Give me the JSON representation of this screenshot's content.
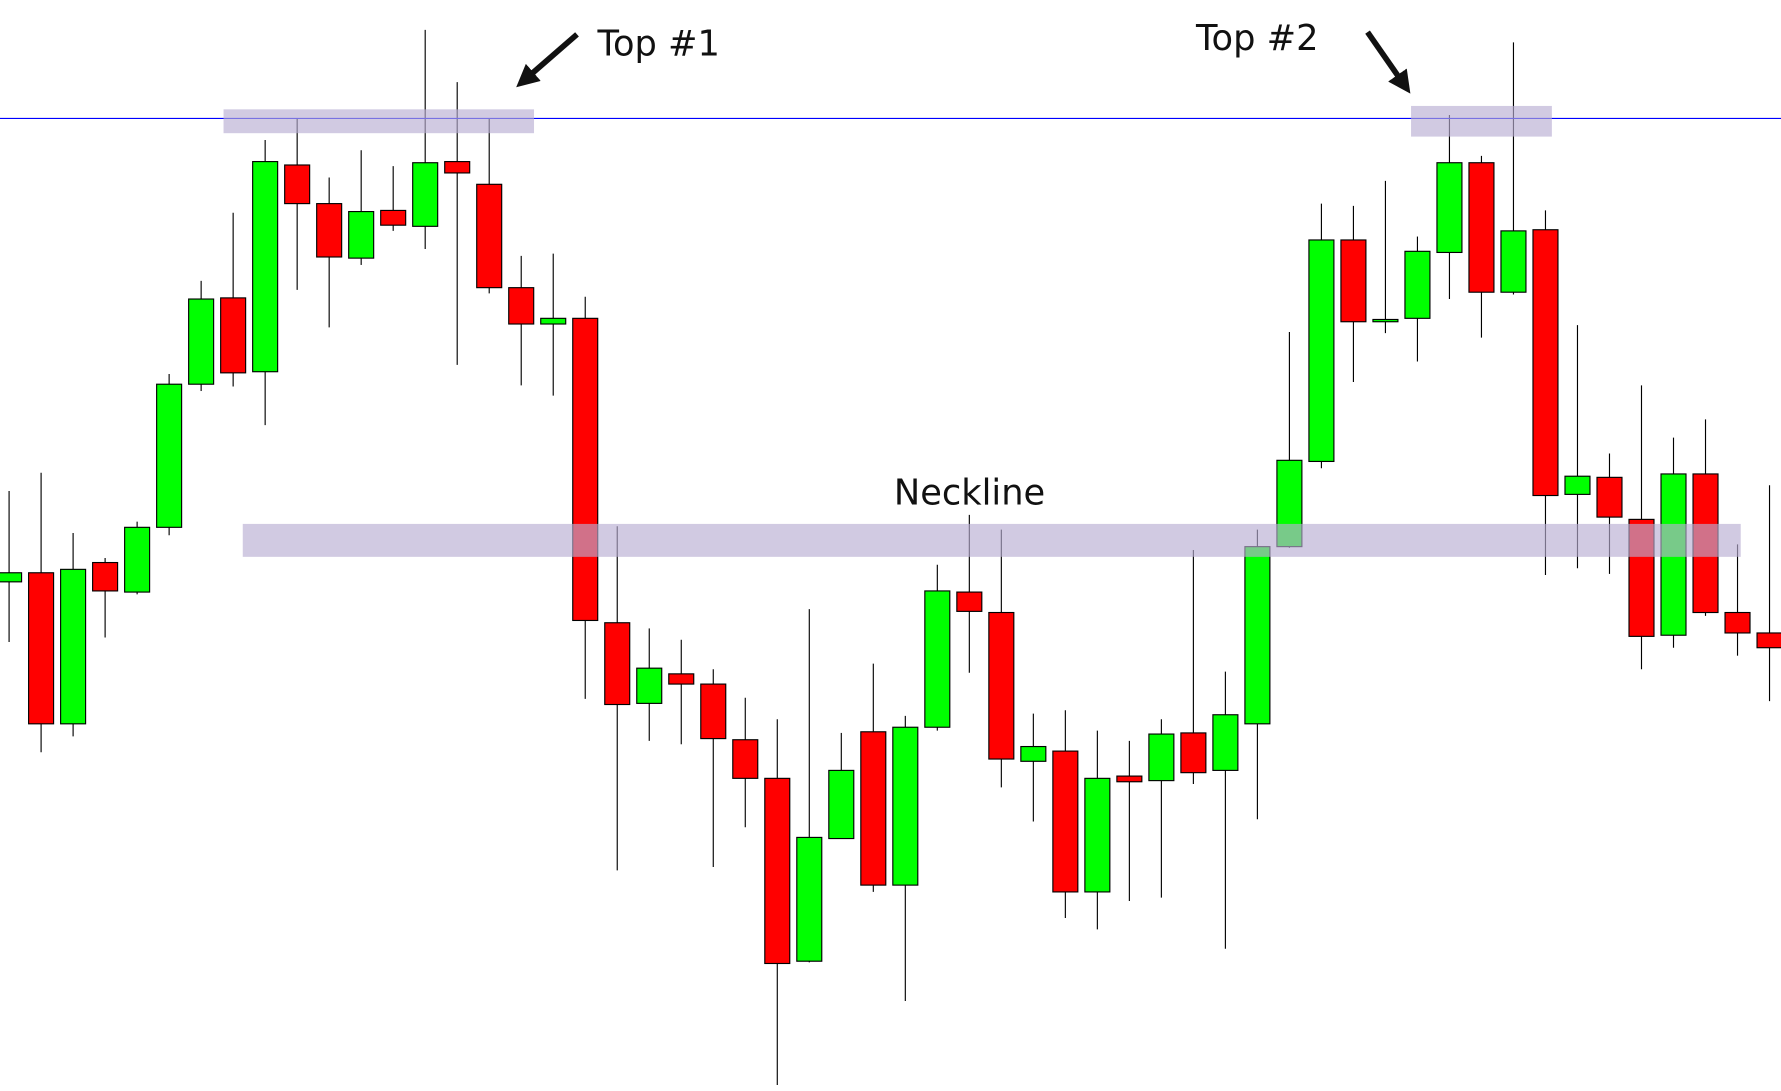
{
  "chart_data": {
    "type": "candlestick",
    "up_color": "#00ff00",
    "down_color": "#ff0000",
    "ylim": [
      0,
      960
    ],
    "open": [
      448,
      456,
      323,
      465,
      439,
      496,
      622,
      698,
      633,
      815,
      781,
      733,
      775,
      761,
      818,
      798,
      707,
      675,
      680,
      412,
      341,
      367,
      358,
      309,
      275,
      114,
      222,
      316,
      181,
      320,
      439,
      421,
      290,
      299,
      175,
      277,
      273,
      315,
      282,
      323,
      479,
      554,
      749,
      677,
      680,
      738,
      817,
      703,
      758,
      525,
      540,
      503,
      401,
      543,
      421,
      403
    ],
    "high": [
      528,
      544,
      491,
      469,
      501,
      631,
      713,
      773,
      837,
      856,
      804,
      828,
      814,
      934,
      888,
      856,
      735,
      737,
      699,
      497,
      407,
      397,
      371,
      346,
      327,
      424,
      315,
      376,
      330,
      463,
      507,
      494,
      332,
      335,
      317,
      308,
      327,
      476,
      369,
      494,
      668,
      781,
      779,
      801,
      752,
      859,
      823,
      923,
      775,
      674,
      561,
      621,
      575,
      591,
      481,
      533
    ],
    "low": [
      395,
      298,
      312,
      399,
      437,
      489,
      616,
      620,
      586,
      705,
      672,
      727,
      757,
      741,
      639,
      702,
      621,
      612,
      345,
      194,
      308,
      305,
      197,
      232,
      5,
      113,
      222,
      175,
      79,
      317,
      368,
      267,
      237,
      152,
      142,
      167,
      170,
      270,
      125,
      239,
      478,
      548,
      624,
      667,
      642,
      697,
      663,
      701,
      454,
      460,
      455,
      371,
      390,
      418,
      383,
      343
    ],
    "close": [
      456,
      323,
      459,
      440,
      496,
      622,
      697,
      632,
      818,
      781,
      734,
      774,
      762,
      817,
      808,
      707,
      675,
      680,
      414,
      340,
      372,
      358,
      310,
      275,
      112,
      223,
      282,
      181,
      320,
      440,
      422,
      292,
      303,
      175,
      275,
      272,
      314,
      280,
      331,
      479,
      555,
      749,
      677,
      679,
      739,
      817,
      703,
      757,
      524,
      541,
      505,
      400,
      543,
      421,
      403,
      390
    ],
    "resistance": {
      "value": 856,
      "color": "#0000ff"
    },
    "zones": [
      {
        "from": 6.7,
        "to": 16.4,
        "low": 843,
        "high": 864
      },
      {
        "from": 43.8,
        "to": 48.2,
        "low": 840,
        "high": 867
      },
      {
        "from": 7.3,
        "to": 54.1,
        "low": 470,
        "high": 499
      }
    ],
    "zone_color": "#b9aed3",
    "annotations": {
      "top1": "Top #1",
      "top2": "Top #2",
      "neckline": "Neckline"
    }
  }
}
